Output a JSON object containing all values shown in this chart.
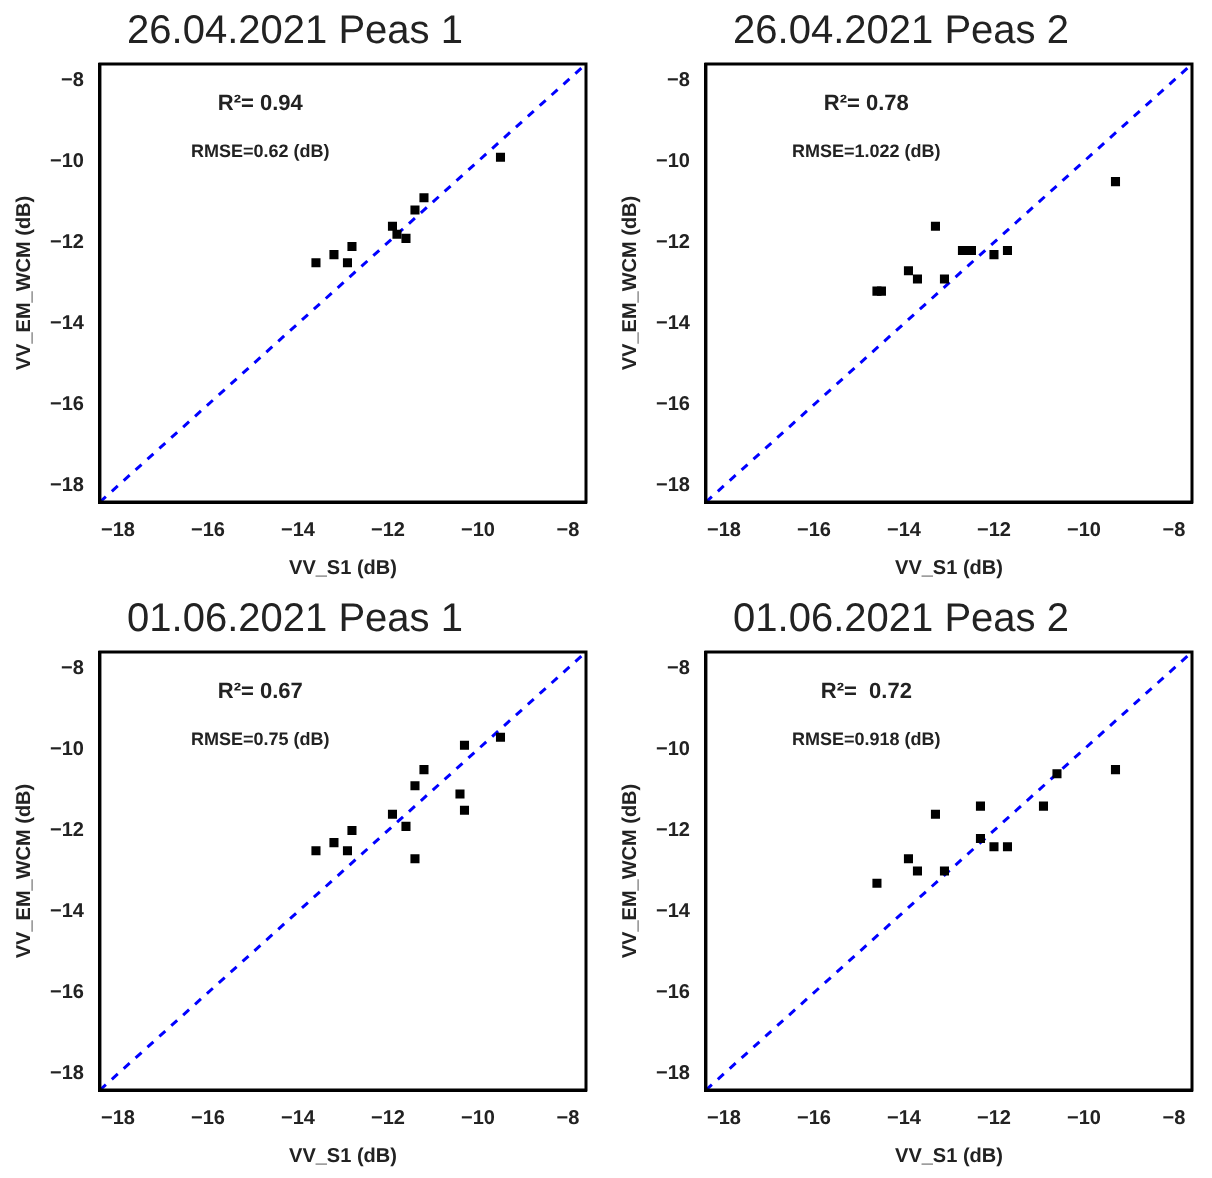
{
  "chart_data": [
    {
      "type": "scatter",
      "title": "26.04.2021 Peas 1",
      "xlabel": "VV_S1 (dB)",
      "ylabel": "VV_EM_WCM (dB)",
      "annotations": [
        "R²= 0.94",
        "RMSE=0.62 (dB)"
      ],
      "xlim": [
        -18.4,
        -7.6
      ],
      "ylim": [
        -18.4,
        -7.6
      ],
      "xticks": [
        -18,
        -16,
        -14,
        -12,
        -10,
        -8
      ],
      "yticks": [
        -18,
        -16,
        -14,
        -12,
        -10,
        -8
      ],
      "grid": false,
      "legend": false,
      "marker": "square",
      "series": [
        {
          "color": "#000000",
          "x": [
            -9.5,
            -11.2,
            -11.4,
            -11.9,
            -11.8,
            -11.6,
            -13.6,
            -13.2,
            -12.9,
            -12.8
          ],
          "values": [
            -9.9,
            -10.9,
            -11.2,
            -11.6,
            -11.8,
            -11.9,
            -12.5,
            -12.3,
            -12.5,
            -12.1
          ]
        },
        {
          "type": "line",
          "color": "#0000ff",
          "line_style": "dashed",
          "marker": "none",
          "x": [
            -18.4,
            -7.6
          ],
          "values": [
            -18.4,
            -7.6
          ]
        }
      ]
    },
    {
      "type": "scatter",
      "title": "26.04.2021 Peas 2",
      "xlabel": "VV_S1 (dB)",
      "ylabel": "VV_EM_WCM (dB)",
      "annotations": [
        "R²= 0.78",
        "RMSE=1.022 (dB)"
      ],
      "xlim": [
        -18.4,
        -7.6
      ],
      "ylim": [
        -18.4,
        -7.6
      ],
      "xticks": [
        -18,
        -16,
        -14,
        -12,
        -10,
        -8
      ],
      "yticks": [
        -18,
        -16,
        -14,
        -12,
        -10,
        -8
      ],
      "grid": false,
      "legend": false,
      "marker": "square",
      "series": [
        {
          "color": "#000000",
          "x": [
            -9.3,
            -13.3,
            -12.7,
            -12.5,
            -12.0,
            -11.7,
            -13.9,
            -13.7,
            -13.1,
            -14.6,
            -14.5
          ],
          "values": [
            -10.5,
            -11.6,
            -12.2,
            -12.2,
            -12.3,
            -12.2,
            -12.7,
            -12.9,
            -12.9,
            -13.2,
            -13.2
          ]
        },
        {
          "type": "line",
          "color": "#0000ff",
          "line_style": "dashed",
          "marker": "none",
          "x": [
            -18.4,
            -7.6
          ],
          "values": [
            -18.4,
            -7.6
          ]
        }
      ]
    },
    {
      "type": "scatter",
      "title": "01.06.2021 Peas 1",
      "xlabel": "VV_S1 (dB)",
      "ylabel": "VV_EM_WCM (dB)",
      "annotations": [
        "R²= 0.67",
        "RMSE=0.75 (dB)"
      ],
      "xlim": [
        -18.4,
        -7.6
      ],
      "ylim": [
        -18.4,
        -7.6
      ],
      "xticks": [
        -18,
        -16,
        -14,
        -12,
        -10,
        -8
      ],
      "yticks": [
        -18,
        -16,
        -14,
        -12,
        -10,
        -8
      ],
      "grid": false,
      "legend": false,
      "marker": "square",
      "series": [
        {
          "color": "#000000",
          "x": [
            -9.5,
            -10.3,
            -11.2,
            -11.4,
            -10.4,
            -10.3,
            -11.9,
            -11.6,
            -12.8,
            -13.2,
            -13.6,
            -12.9,
            -11.4
          ],
          "values": [
            -9.7,
            -9.9,
            -10.5,
            -10.9,
            -11.1,
            -11.5,
            -11.6,
            -11.9,
            -12.0,
            -12.3,
            -12.5,
            -12.5,
            -12.7
          ]
        },
        {
          "type": "line",
          "color": "#0000ff",
          "line_style": "dashed",
          "marker": "none",
          "x": [
            -18.4,
            -7.6
          ],
          "values": [
            -18.4,
            -7.6
          ]
        }
      ]
    },
    {
      "type": "scatter",
      "title": "01.06.2021 Peas 2",
      "xlabel": "VV_S1 (dB)",
      "ylabel": "VV_EM_WCM (dB)",
      "annotations": [
        "R²=  0.72",
        "RMSE=0.918 (dB)"
      ],
      "xlim": [
        -18.4,
        -7.6
      ],
      "ylim": [
        -18.4,
        -7.6
      ],
      "xticks": [
        -18,
        -16,
        -14,
        -12,
        -10,
        -8
      ],
      "yticks": [
        -18,
        -16,
        -14,
        -12,
        -10,
        -8
      ],
      "grid": false,
      "legend": false,
      "marker": "square",
      "series": [
        {
          "color": "#000000",
          "x": [
            -9.3,
            -10.6,
            -10.9,
            -12.3,
            -13.3,
            -12.3,
            -12.0,
            -11.7,
            -13.9,
            -13.7,
            -13.1,
            -14.6
          ],
          "values": [
            -10.5,
            -10.6,
            -11.4,
            -11.4,
            -11.6,
            -12.2,
            -12.4,
            -12.4,
            -12.7,
            -13.0,
            -13.0,
            -13.3
          ]
        },
        {
          "type": "line",
          "color": "#0000ff",
          "line_style": "dashed",
          "marker": "none",
          "x": [
            -18.4,
            -7.6
          ],
          "values": [
            -18.4,
            -7.6
          ]
        }
      ]
    }
  ]
}
